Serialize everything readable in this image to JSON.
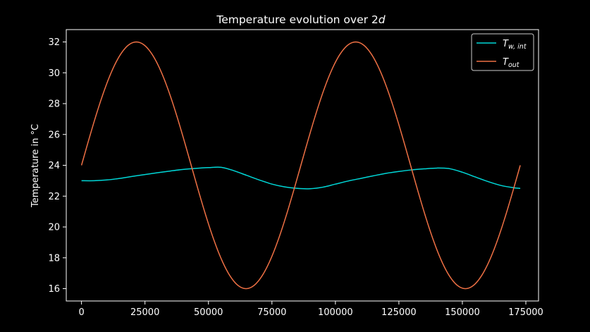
{
  "colors": {
    "background": "#000000",
    "axes": "#ffffff",
    "series_tw": "#00d7d7",
    "series_tout": "#ee7044"
  },
  "chart_data": {
    "type": "line",
    "title": "Temperature evolution over 2",
    "title_italic": "d",
    "xlabel": "",
    "ylabel": "Temperature in °C",
    "xlim": [
      -6000,
      180000
    ],
    "ylim": [
      15.2,
      32.8
    ],
    "xticks": [
      0,
      25000,
      50000,
      75000,
      100000,
      125000,
      150000,
      175000
    ],
    "xtick_labels": [
      "0",
      "25000",
      "50000",
      "75000",
      "100000",
      "125000",
      "150000",
      "175000"
    ],
    "yticks": [
      16,
      18,
      20,
      22,
      24,
      26,
      28,
      30,
      32
    ],
    "ytick_labels": [
      "16",
      "18",
      "20",
      "22",
      "24",
      "26",
      "28",
      "30",
      "32"
    ],
    "legend_position": "top-right",
    "series": [
      {
        "name": "T_w,int",
        "legend_main": "T",
        "legend_sub": "w, int",
        "x": [
          0,
          5000,
          10000,
          15000,
          20000,
          25000,
          30000,
          35000,
          40000,
          45000,
          50000,
          55000,
          60000,
          65000,
          70000,
          75000,
          80000,
          85000,
          90000,
          95000,
          100000,
          105000,
          110000,
          115000,
          120000,
          125000,
          130000,
          135000,
          140000,
          145000,
          150000,
          155000,
          160000,
          165000,
          170000,
          172800
        ],
        "values": [
          23.0,
          23.0,
          23.05,
          23.15,
          23.28,
          23.4,
          23.52,
          23.63,
          23.73,
          23.8,
          23.85,
          23.87,
          23.65,
          23.35,
          23.05,
          22.78,
          22.6,
          22.5,
          22.48,
          22.58,
          22.78,
          22.98,
          23.15,
          23.32,
          23.48,
          23.6,
          23.7,
          23.77,
          23.82,
          23.78,
          23.55,
          23.25,
          22.95,
          22.7,
          22.55,
          22.5
        ]
      },
      {
        "name": "T_out",
        "legend_main": "T",
        "legend_sub": "out",
        "function": "24 + 8*sin(2*pi*x/86400)",
        "mean": 24,
        "amplitude": 8,
        "period": 86400,
        "x_range": [
          0,
          172800
        ]
      }
    ]
  }
}
